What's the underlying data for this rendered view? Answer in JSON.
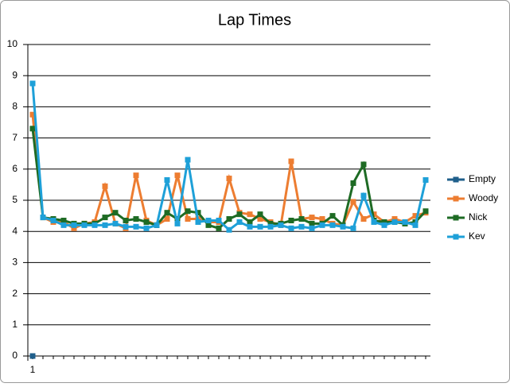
{
  "chart_data": {
    "type": "line",
    "title": "Lap Times",
    "categories": [
      "1",
      null,
      null,
      null,
      null,
      null,
      null,
      null,
      null,
      null,
      null,
      null,
      null,
      null,
      null,
      null,
      null,
      null,
      null,
      null,
      null,
      null,
      null,
      null,
      null,
      null,
      null,
      null,
      null,
      null,
      null,
      null,
      null,
      null,
      null,
      null,
      null,
      null,
      null
    ],
    "series": [
      {
        "name": "Empty",
        "color": "#1f5f8b",
        "values": [
          0,
          null,
          null,
          null,
          null,
          null,
          null,
          null,
          null,
          null,
          null,
          null,
          null,
          null,
          null,
          null,
          null,
          null,
          null,
          null,
          null,
          null,
          null,
          null,
          null,
          null,
          null,
          null,
          null,
          null,
          null,
          null,
          null,
          null,
          null,
          null,
          null,
          null,
          null
        ]
      },
      {
        "name": "Woody",
        "color": "#ed7d31",
        "values": [
          7.75,
          4.45,
          4.3,
          4.3,
          4.1,
          4.25,
          4.3,
          5.45,
          4.25,
          4.1,
          5.8,
          4.35,
          4.2,
          4.4,
          5.8,
          4.4,
          4.4,
          4.3,
          4.3,
          5.7,
          4.6,
          4.55,
          4.4,
          4.3,
          4.2,
          6.25,
          4.4,
          4.45,
          4.4,
          4.25,
          4.2,
          4.95,
          4.4,
          4.55,
          4.3,
          4.4,
          4.3,
          4.5,
          4.6
        ]
      },
      {
        "name": "Nick",
        "color": "#1e6b24",
        "values": [
          7.3,
          4.45,
          4.4,
          4.35,
          4.25,
          4.25,
          4.25,
          4.45,
          4.6,
          4.35,
          4.4,
          4.3,
          4.2,
          4.6,
          4.4,
          4.65,
          4.6,
          4.2,
          4.1,
          4.4,
          4.55,
          4.3,
          4.55,
          4.25,
          4.25,
          4.35,
          4.4,
          4.25,
          4.25,
          4.5,
          4.2,
          5.55,
          6.15,
          4.35,
          4.3,
          4.3,
          4.25,
          4.3,
          4.65
        ]
      },
      {
        "name": "Kev",
        "color": "#1ea0d8",
        "values": [
          8.75,
          4.45,
          4.35,
          4.2,
          4.2,
          4.2,
          4.2,
          4.2,
          4.25,
          4.15,
          4.15,
          4.1,
          4.2,
          5.65,
          4.25,
          6.3,
          4.3,
          4.35,
          4.35,
          4.05,
          4.3,
          4.15,
          4.15,
          4.15,
          4.2,
          4.1,
          4.15,
          4.1,
          4.2,
          4.2,
          4.15,
          4.1,
          5.15,
          4.3,
          4.2,
          4.3,
          4.3,
          4.2,
          5.65
        ]
      }
    ],
    "ylim": [
      0,
      10
    ],
    "yticks": [
      0,
      1,
      2,
      3,
      4,
      5,
      6,
      7,
      8,
      9,
      10
    ],
    "grid": true,
    "legend": "right"
  }
}
